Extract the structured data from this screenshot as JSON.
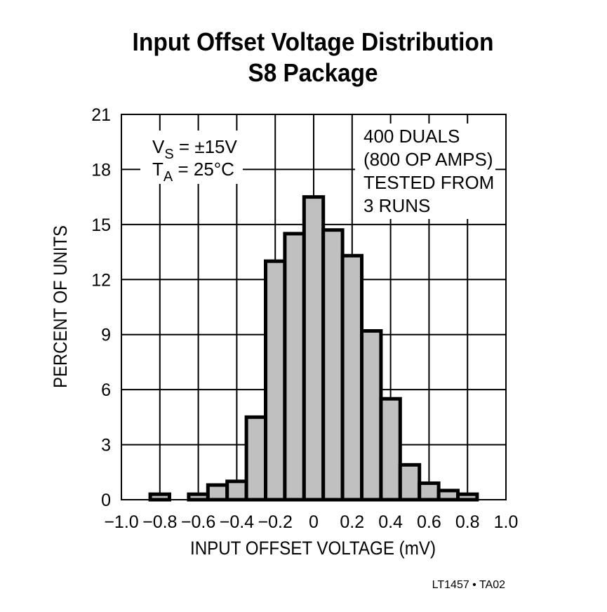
{
  "chart_data": {
    "type": "histogram",
    "title": "Input Offset Voltage Distribution",
    "subtitle": "S8 Package",
    "x_label": "INPUT OFFSET VOLTAGE (mV)",
    "y_label": "PERCENT OF UNITS",
    "bins": [
      -0.85,
      -0.75,
      -0.65,
      -0.55,
      -0.45,
      -0.35,
      -0.25,
      -0.15,
      -0.05,
      0.05,
      0.15,
      0.25,
      0.35,
      0.45,
      0.55,
      0.65,
      0.75,
      0.85
    ],
    "counts": [
      0.3,
      0,
      0.3,
      0.8,
      1.0,
      4.5,
      13,
      14.5,
      16.5,
      14.7,
      13.3,
      9.2,
      5.5,
      1.9,
      0.9,
      0.5,
      0.3
    ],
    "color": "#c0c0c0",
    "xlim": [
      -1.0,
      1.0
    ],
    "xticks": [
      {
        "value": -1.0,
        "label": "−1.0"
      },
      {
        "value": -0.8,
        "label": "−0.8"
      },
      {
        "value": -0.6,
        "label": "−0.6"
      },
      {
        "value": -0.4,
        "label": "−0.4"
      },
      {
        "value": -0.2,
        "label": "−0.2"
      },
      0,
      0.2,
      0.4,
      0.6,
      0.8,
      {
        "value": 1.0,
        "label": "1.0"
      }
    ],
    "ylim": [
      0,
      21
    ],
    "yticks": [
      0,
      3,
      6,
      9,
      12,
      15,
      18,
      21
    ],
    "grid": true,
    "conditions": [
      {
        "main": "V",
        "sub": "S",
        "rest": " = ±15V"
      },
      {
        "main": "T",
        "sub": "A",
        "rest": " = 25°C"
      }
    ],
    "note": [
      "400 DUALS",
      "(800 OP AMPS)",
      "TESTED FROM",
      "3 RUNS"
    ],
    "footer": "LT1457 • TA02"
  }
}
